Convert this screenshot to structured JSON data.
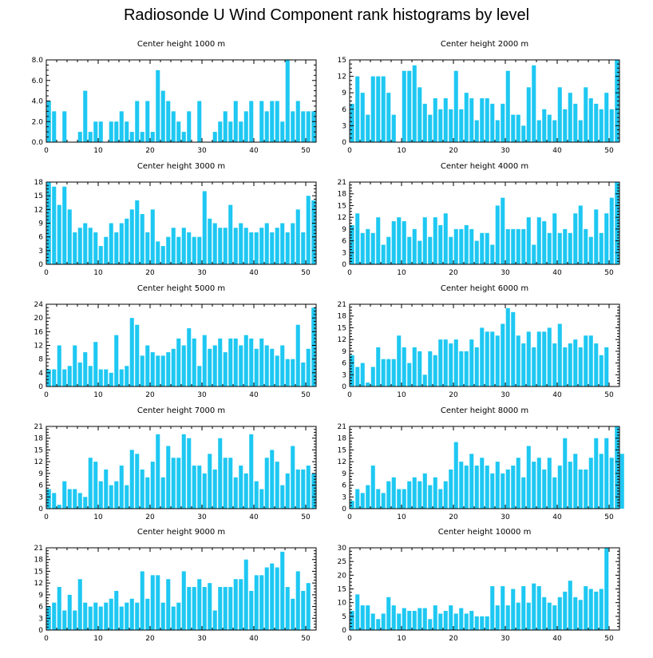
{
  "title": "Radiosonde U Wind Component rank histograms by level",
  "colors": {
    "bar": "#1ec8f2",
    "axis": "#000000"
  },
  "chart_data": [
    {
      "type": "bar",
      "title": "Center height 1000 m",
      "ylim": [
        0,
        8
      ],
      "yticks": [
        "0.0",
        "2.0",
        "4.0",
        "6.0",
        "8.0"
      ],
      "xlim": [
        0,
        52
      ],
      "xticks": [
        "0",
        "10",
        "20",
        "30",
        "40",
        "50"
      ],
      "values": [
        4,
        3,
        0,
        3,
        0,
        0,
        1,
        5,
        1,
        2,
        2,
        0,
        2,
        2,
        3,
        2,
        1,
        4,
        1,
        4,
        1,
        7,
        5,
        4,
        3,
        2,
        1,
        3,
        0,
        4,
        0,
        0,
        1,
        2,
        3,
        2,
        4,
        2,
        3,
        4,
        0,
        4,
        3,
        4,
        4,
        2,
        8,
        3,
        4,
        3,
        3,
        3
      ]
    },
    {
      "type": "bar",
      "title": "Center height 2000 m",
      "ylim": [
        0,
        15
      ],
      "yticks": [
        "0",
        "3",
        "6",
        "9",
        "12",
        "15"
      ],
      "xlim": [
        0,
        52
      ],
      "xticks": [
        "0",
        "10",
        "20",
        "30",
        "40",
        "50"
      ],
      "values": [
        7,
        12,
        9,
        5,
        12,
        12,
        12,
        9,
        5,
        0,
        13,
        13,
        14,
        10,
        7,
        5,
        8,
        6,
        8,
        6,
        13,
        6,
        9,
        8,
        4,
        8,
        8,
        7,
        4,
        7,
        13,
        5,
        5,
        3,
        10,
        14,
        4,
        6,
        5,
        4,
        10,
        6,
        9,
        7,
        4,
        10,
        8,
        7,
        6,
        9,
        6,
        15
      ]
    },
    {
      "type": "bar",
      "title": "Center height 3000 m",
      "ylim": [
        0,
        18
      ],
      "yticks": [
        "0",
        "3",
        "6",
        "9",
        "12",
        "15",
        "18"
      ],
      "xlim": [
        0,
        52
      ],
      "xticks": [
        "0",
        "10",
        "20",
        "30",
        "40",
        "50"
      ],
      "values": [
        18,
        17,
        13,
        17,
        12,
        7,
        8,
        9,
        8,
        7,
        4,
        6,
        9,
        7,
        9,
        10,
        12,
        14,
        11,
        7,
        12,
        5,
        4,
        6,
        8,
        6,
        8,
        7,
        6,
        6,
        16,
        10,
        9,
        8,
        8,
        13,
        8,
        9,
        8,
        7,
        7,
        8,
        9,
        7,
        8,
        9,
        7,
        9,
        12,
        7,
        15,
        14
      ]
    },
    {
      "type": "bar",
      "title": "Center height 4000 m",
      "ylim": [
        0,
        21
      ],
      "yticks": [
        "0",
        "3",
        "6",
        "9",
        "12",
        "15",
        "18",
        "21"
      ],
      "xlim": [
        0,
        52
      ],
      "xticks": [
        "0",
        "10",
        "20",
        "30",
        "40",
        "50"
      ],
      "values": [
        10,
        13,
        8,
        9,
        8,
        12,
        5,
        7,
        11,
        12,
        11,
        7,
        9,
        6,
        12,
        7,
        12,
        10,
        13,
        7,
        9,
        9,
        10,
        9,
        6,
        8,
        8,
        5,
        15,
        17,
        9,
        9,
        9,
        9,
        12,
        5,
        12,
        11,
        8,
        13,
        8,
        9,
        8,
        13,
        15,
        9,
        7,
        14,
        8,
        13,
        17,
        21
      ]
    },
    {
      "type": "bar",
      "title": "Center height 5000 m",
      "ylim": [
        0,
        24
      ],
      "yticks": [
        "0",
        "4",
        "8",
        "12",
        "16",
        "20",
        "24"
      ],
      "xlim": [
        0,
        52
      ],
      "xticks": [
        "0",
        "10",
        "20",
        "30",
        "40",
        "50"
      ],
      "values": [
        5,
        5,
        12,
        5,
        6,
        12,
        7,
        10,
        6,
        13,
        5,
        5,
        4,
        15,
        5,
        6,
        20,
        18,
        9,
        12,
        10,
        9,
        9,
        10,
        11,
        14,
        12,
        17,
        14,
        6,
        15,
        11,
        12,
        14,
        10,
        14,
        14,
        12,
        15,
        14,
        11,
        14,
        12,
        11,
        9,
        12,
        8,
        8,
        18,
        7,
        11,
        23
      ]
    },
    {
      "type": "bar",
      "title": "Center height 6000 m",
      "ylim": [
        0,
        21
      ],
      "yticks": [
        "0",
        "3",
        "6",
        "9",
        "12",
        "15",
        "18",
        "21"
      ],
      "xlim": [
        0,
        52
      ],
      "xticks": [
        "0",
        "10",
        "20",
        "30",
        "40",
        "50"
      ],
      "values": [
        8,
        5,
        6,
        1,
        5,
        10,
        7,
        7,
        7,
        13,
        10,
        6,
        10,
        9,
        3,
        9,
        8,
        12,
        12,
        11,
        12,
        9,
        9,
        12,
        10,
        15,
        14,
        14,
        13,
        16,
        20,
        19,
        13,
        11,
        14,
        10,
        14,
        14,
        15,
        11,
        16,
        10,
        11,
        12,
        10,
        13,
        13,
        11,
        8,
        10,
        0,
        0
      ]
    },
    {
      "type": "bar",
      "title": "Center height 7000 m",
      "ylim": [
        0,
        21
      ],
      "yticks": [
        "0",
        "3",
        "6",
        "9",
        "12",
        "15",
        "18",
        "21"
      ],
      "xlim": [
        0,
        52
      ],
      "xticks": [
        "0",
        "10",
        "20",
        "30",
        "40",
        "50"
      ],
      "values": [
        5,
        4,
        1,
        7,
        5,
        5,
        4,
        3,
        13,
        12,
        7,
        10,
        6,
        7,
        11,
        6,
        15,
        14,
        10,
        8,
        12,
        19,
        8,
        16,
        13,
        13,
        19,
        18,
        11,
        11,
        9,
        14,
        10,
        18,
        13,
        13,
        8,
        11,
        9,
        19,
        7,
        5,
        13,
        15,
        12,
        6,
        9,
        16,
        10,
        10,
        11,
        9
      ]
    },
    {
      "type": "bar",
      "title": "Center height 8000 m",
      "ylim": [
        0,
        21
      ],
      "yticks": [
        "0",
        "3",
        "6",
        "9",
        "12",
        "15",
        "18",
        "21"
      ],
      "xlim": [
        0,
        52
      ],
      "xticks": [
        "0",
        "10",
        "20",
        "30",
        "40",
        "50"
      ],
      "values": [
        2,
        5,
        4,
        6,
        11,
        5,
        4,
        7,
        8,
        5,
        5,
        7,
        8,
        7,
        9,
        6,
        8,
        5,
        7,
        10,
        17,
        12,
        11,
        14,
        11,
        13,
        11,
        9,
        12,
        9,
        10,
        11,
        13,
        8,
        16,
        12,
        13,
        10,
        13,
        8,
        11,
        18,
        12,
        14,
        10,
        10,
        13,
        18,
        14,
        18,
        13,
        21,
        14
      ]
    },
    {
      "type": "bar",
      "title": "Center height 9000 m",
      "ylim": [
        0,
        21
      ],
      "yticks": [
        "0",
        "3",
        "6",
        "9",
        "12",
        "15",
        "18",
        "21"
      ],
      "xlim": [
        0,
        52
      ],
      "xticks": [
        "0",
        "10",
        "20",
        "30",
        "40",
        "50"
      ],
      "values": [
        6,
        7,
        11,
        5,
        9,
        5,
        13,
        7,
        6,
        7,
        6,
        7,
        8,
        10,
        6,
        7,
        8,
        7,
        15,
        8,
        14,
        14,
        7,
        13,
        6,
        7,
        15,
        11,
        11,
        13,
        11,
        12,
        5,
        11,
        11,
        11,
        13,
        13,
        18,
        10,
        14,
        14,
        16,
        17,
        16,
        20,
        11,
        8,
        15,
        10,
        12,
        0
      ]
    },
    {
      "type": "bar",
      "title": "Center height 10000 m",
      "ylim": [
        0,
        30
      ],
      "yticks": [
        "0",
        "5",
        "10",
        "15",
        "20",
        "25",
        "30"
      ],
      "xlim": [
        0,
        52
      ],
      "xticks": [
        "0",
        "10",
        "20",
        "30",
        "40",
        "50"
      ],
      "values": [
        7,
        13,
        9,
        9,
        6,
        4,
        6,
        12,
        9,
        6,
        8,
        7,
        7,
        8,
        8,
        4,
        9,
        6,
        7,
        9,
        6,
        8,
        6,
        7,
        5,
        5,
        5,
        16,
        9,
        16,
        9,
        15,
        10,
        16,
        10,
        17,
        16,
        12,
        10,
        9,
        12,
        14,
        18,
        12,
        11,
        16,
        15,
        14,
        15,
        30,
        0,
        0
      ]
    }
  ]
}
